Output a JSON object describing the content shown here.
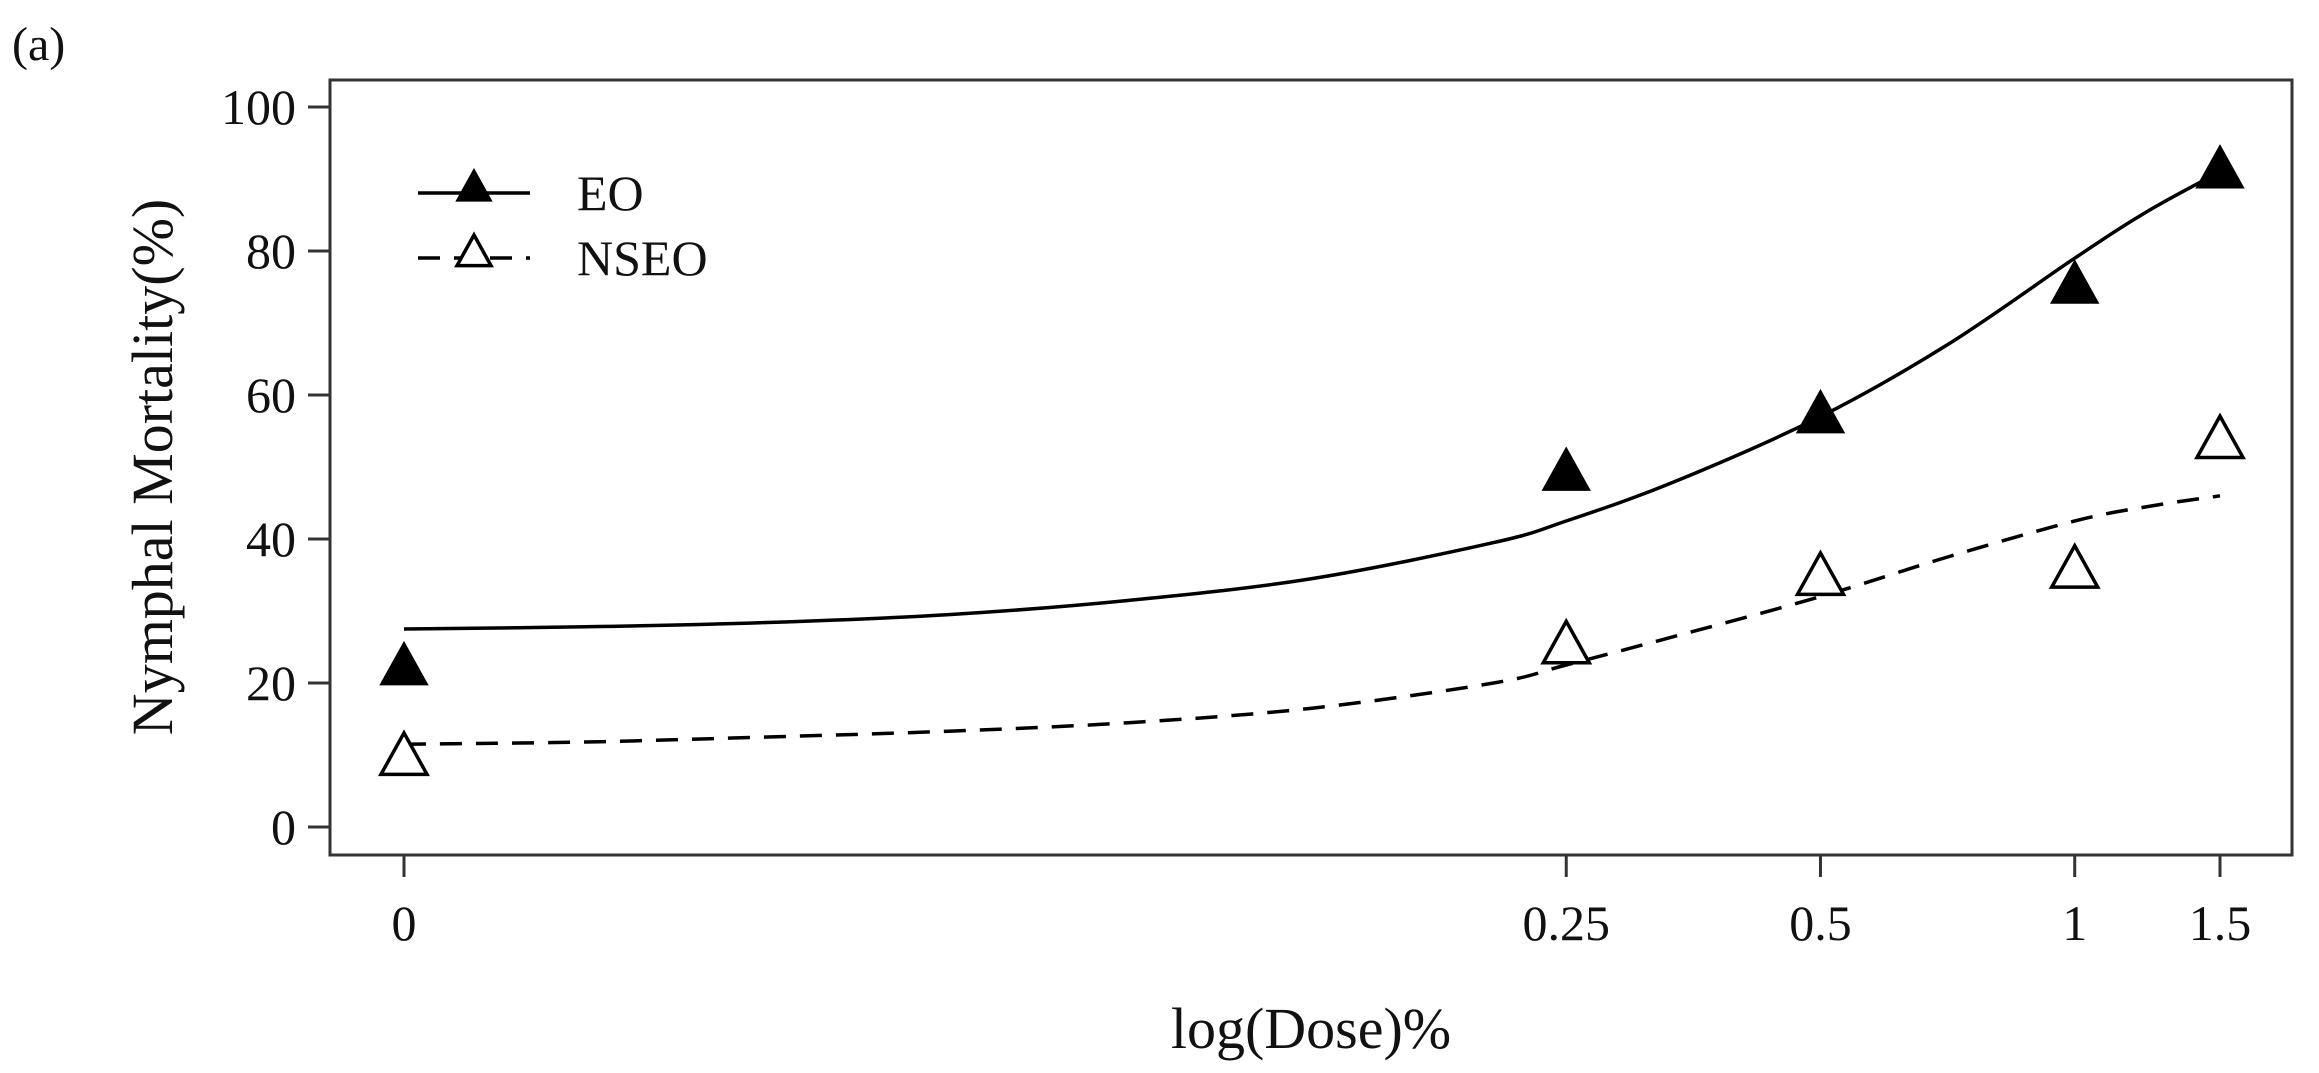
{
  "panel_label": "(a)",
  "chart_data": {
    "type": "scatter",
    "title": "",
    "xlabel": "log(Dose)%",
    "ylabel": "Nymphal Mortality(%)",
    "ylim": [
      0,
      100
    ],
    "yticks": [
      0,
      20,
      40,
      60,
      80,
      100
    ],
    "x_positions": [
      0,
      0.64,
      0.78,
      0.92,
      1.0
    ],
    "x_tick_labels": [
      "0",
      "0.25",
      "0.5",
      "1",
      "1.5"
    ],
    "grid": false,
    "legend_position": "top-left",
    "series": [
      {
        "name": "EO",
        "marker": "filled-triangle",
        "line": "solid",
        "points": [
          22,
          49,
          57,
          75,
          91
        ],
        "fit": [
          [
            0,
            27.5
          ],
          [
            0.1,
            27.8
          ],
          [
            0.2,
            28.4
          ],
          [
            0.3,
            29.5
          ],
          [
            0.4,
            31.5
          ],
          [
            0.5,
            34.5
          ],
          [
            0.6,
            39.5
          ],
          [
            0.64,
            42.5
          ],
          [
            0.7,
            48
          ],
          [
            0.78,
            57
          ],
          [
            0.85,
            67
          ],
          [
            0.92,
            79
          ],
          [
            0.96,
            85.5
          ],
          [
            1.0,
            91
          ]
        ]
      },
      {
        "name": "NSEO",
        "marker": "open-triangle",
        "line": "dashed",
        "points": [
          9.5,
          25,
          34.5,
          35.5,
          53.5
        ],
        "fit": [
          [
            0,
            11.5
          ],
          [
            0.1,
            11.8
          ],
          [
            0.2,
            12.5
          ],
          [
            0.3,
            13.3
          ],
          [
            0.4,
            14.5
          ],
          [
            0.5,
            16.5
          ],
          [
            0.6,
            20
          ],
          [
            0.64,
            22.5
          ],
          [
            0.7,
            26.5
          ],
          [
            0.78,
            32
          ],
          [
            0.85,
            37.5
          ],
          [
            0.92,
            42.5
          ],
          [
            0.96,
            44.5
          ],
          [
            1.0,
            46
          ]
        ]
      }
    ]
  }
}
